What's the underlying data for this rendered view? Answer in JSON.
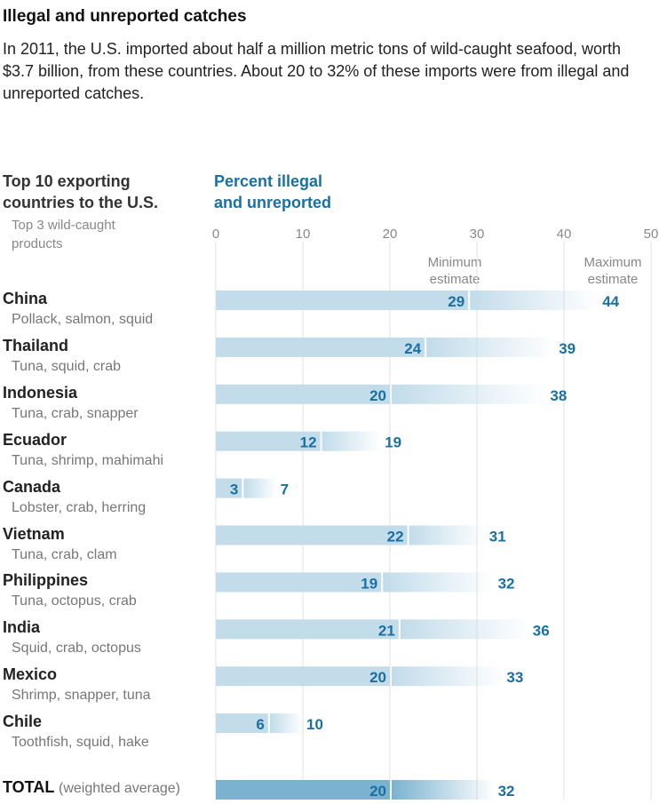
{
  "header": {
    "title": "Illegal and unreported catches",
    "subtitle": "In 2011, the U.S. imported about half a million metric tons of wild-caught seafood, worth $3.7 billion, from these countries. About 20 to 32% of these imports were from illegal and unreported catches."
  },
  "columns": {
    "countries_heading_line1": "Top 10 exporting",
    "countries_heading_line2": "countries to the U.S.",
    "products_heading_line1": "Top 3 wild-caught",
    "products_heading_line2": "products",
    "percent_heading_line1": "Percent illegal",
    "percent_heading_line2": "and unreported"
  },
  "legend": {
    "min_line1": "Minimum",
    "min_line2": "estimate",
    "max_line1": "Maximum",
    "max_line2": "estimate"
  },
  "total": {
    "label": "TOTAL",
    "note": "(weighted average)"
  },
  "colors": {
    "bar_light": "#c2dcea",
    "bar_total": "#7ab2d0",
    "value_text": "#1a6fa3",
    "gridline": "#e0e0e0"
  },
  "chart_data": {
    "type": "bar",
    "orientation": "horizontal",
    "xlim": [
      0,
      50
    ],
    "xticks": [
      0,
      10,
      20,
      30,
      40,
      50
    ],
    "grid": true,
    "categories": [
      "China",
      "Thailand",
      "Indonesia",
      "Ecuador",
      "Canada",
      "Vietnam",
      "Philippines",
      "India",
      "Mexico",
      "Chile"
    ],
    "products": [
      "Pollack, salmon, squid",
      "Tuna, squid, crab",
      "Tuna, crab, snapper",
      "Tuna, shrimp, mahimahi",
      "Lobster, crab, herring",
      "Tuna, crab, clam",
      "Tuna, octopus, crab",
      "Squid, crab, octopus",
      "Shrimp, snapper, tuna",
      "Toothfish, squid, hake"
    ],
    "series": [
      {
        "name": "Minimum estimate",
        "values": [
          29,
          24,
          20,
          12,
          3,
          22,
          19,
          21,
          20,
          6
        ]
      },
      {
        "name": "Maximum estimate",
        "values": [
          44,
          39,
          38,
          19,
          7,
          31,
          32,
          36,
          33,
          10
        ]
      }
    ],
    "total": {
      "min": 20,
      "max": 32
    }
  }
}
